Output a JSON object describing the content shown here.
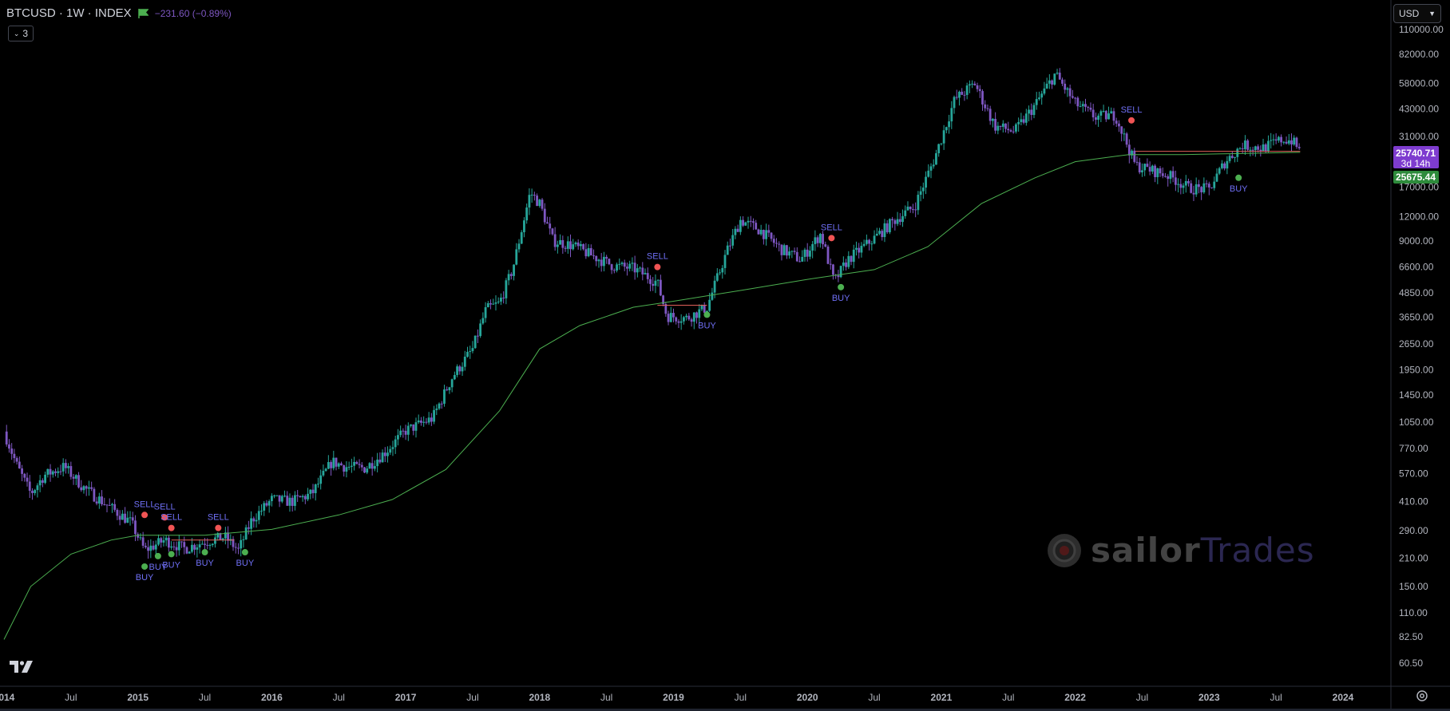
{
  "header": {
    "symbol_line": "BTCUSD · 1W · INDEX",
    "change": "−231.60 (−0.89%)",
    "indicator_count": "3"
  },
  "currency_selector": {
    "value": "USD"
  },
  "watermark": {
    "part1": "sailor",
    "part2": "Trades"
  },
  "colors": {
    "background": "#000000",
    "candle_up": "#26a69a",
    "candle_down": "#7e57c2",
    "ma_line": "#4caf50",
    "resistance_line": "#e0605a",
    "buy_marker": "#4caf50",
    "sell_marker": "#f05454",
    "signal_text": "#6f6ff5",
    "price_label_last": "#7e3ccf",
    "price_label_ma": "#2e8b3c"
  },
  "price_labels": {
    "last_price": "25740.71",
    "countdown": "3d 14h",
    "ma_price": "25675.44"
  },
  "chart_data": {
    "type": "candlestick",
    "title": "BTCUSD · 1W · INDEX",
    "y_scale": "log",
    "y_ticks": [
      "110000.00",
      "82000.00",
      "58000.00",
      "43000.00",
      "31000.00",
      "17000.00",
      "12000.00",
      "9000.00",
      "6600.00",
      "4850.00",
      "3650.00",
      "2650.00",
      "1950.00",
      "1450.00",
      "1050.00",
      "770.00",
      "570.00",
      "410.00",
      "290.00",
      "210.00",
      "150.00",
      "110.00",
      "82.50",
      "60.50"
    ],
    "x_ticks": [
      "2014",
      "Jul",
      "2015",
      "Jul",
      "2016",
      "Jul",
      "2017",
      "Jul",
      "2018",
      "Jul",
      "2019",
      "Jul",
      "2020",
      "Jul",
      "2021",
      "Jul",
      "2022",
      "Jul",
      "2023",
      "Jul",
      "2024"
    ],
    "price_series": [
      {
        "t": 2014.0,
        "v": 940
      },
      {
        "t": 2014.1,
        "v": 620
      },
      {
        "t": 2014.2,
        "v": 450
      },
      {
        "t": 2014.3,
        "v": 560
      },
      {
        "t": 2014.45,
        "v": 620
      },
      {
        "t": 2014.6,
        "v": 480
      },
      {
        "t": 2014.8,
        "v": 380
      },
      {
        "t": 2014.95,
        "v": 320
      },
      {
        "t": 2015.05,
        "v": 230
      },
      {
        "t": 2015.2,
        "v": 260
      },
      {
        "t": 2015.35,
        "v": 235
      },
      {
        "t": 2015.5,
        "v": 255
      },
      {
        "t": 2015.65,
        "v": 270
      },
      {
        "t": 2015.75,
        "v": 230
      },
      {
        "t": 2015.85,
        "v": 330
      },
      {
        "t": 2016.0,
        "v": 420
      },
      {
        "t": 2016.15,
        "v": 410
      },
      {
        "t": 2016.3,
        "v": 450
      },
      {
        "t": 2016.45,
        "v": 660
      },
      {
        "t": 2016.55,
        "v": 620
      },
      {
        "t": 2016.7,
        "v": 610
      },
      {
        "t": 2016.85,
        "v": 740
      },
      {
        "t": 2017.0,
        "v": 950
      },
      {
        "t": 2017.2,
        "v": 1100
      },
      {
        "t": 2017.35,
        "v": 1800
      },
      {
        "t": 2017.5,
        "v": 2500
      },
      {
        "t": 2017.6,
        "v": 4000
      },
      {
        "t": 2017.7,
        "v": 4300
      },
      {
        "t": 2017.8,
        "v": 6500
      },
      {
        "t": 2017.93,
        "v": 16000
      },
      {
        "t": 2018.0,
        "v": 14000
      },
      {
        "t": 2018.1,
        "v": 9000
      },
      {
        "t": 2018.25,
        "v": 8500
      },
      {
        "t": 2018.4,
        "v": 7500
      },
      {
        "t": 2018.55,
        "v": 6700
      },
      {
        "t": 2018.7,
        "v": 6500
      },
      {
        "t": 2018.88,
        "v": 5500
      },
      {
        "t": 2018.95,
        "v": 3700
      },
      {
        "t": 2019.1,
        "v": 3600
      },
      {
        "t": 2019.25,
        "v": 4100
      },
      {
        "t": 2019.4,
        "v": 8000
      },
      {
        "t": 2019.5,
        "v": 11500
      },
      {
        "t": 2019.65,
        "v": 10200
      },
      {
        "t": 2019.8,
        "v": 8200
      },
      {
        "t": 2019.95,
        "v": 7200
      },
      {
        "t": 2020.1,
        "v": 9800
      },
      {
        "t": 2020.2,
        "v": 5500
      },
      {
        "t": 2020.3,
        "v": 7200
      },
      {
        "t": 2020.5,
        "v": 9300
      },
      {
        "t": 2020.65,
        "v": 11500
      },
      {
        "t": 2020.8,
        "v": 13500
      },
      {
        "t": 2020.95,
        "v": 24000
      },
      {
        "t": 2021.1,
        "v": 48000
      },
      {
        "t": 2021.25,
        "v": 58000
      },
      {
        "t": 2021.4,
        "v": 35000
      },
      {
        "t": 2021.55,
        "v": 33000
      },
      {
        "t": 2021.7,
        "v": 45000
      },
      {
        "t": 2021.85,
        "v": 65000
      },
      {
        "t": 2022.0,
        "v": 46000
      },
      {
        "t": 2022.15,
        "v": 39000
      },
      {
        "t": 2022.3,
        "v": 40000
      },
      {
        "t": 2022.45,
        "v": 22000
      },
      {
        "t": 2022.55,
        "v": 21000
      },
      {
        "t": 2022.7,
        "v": 19500
      },
      {
        "t": 2022.85,
        "v": 16800
      },
      {
        "t": 2023.0,
        "v": 16600
      },
      {
        "t": 2023.12,
        "v": 23000
      },
      {
        "t": 2023.25,
        "v": 28000
      },
      {
        "t": 2023.4,
        "v": 27000
      },
      {
        "t": 2023.55,
        "v": 30000
      },
      {
        "t": 2023.62,
        "v": 29500
      },
      {
        "t": 2023.68,
        "v": 26000
      }
    ],
    "ma_series": [
      {
        "t": 2014.0,
        "v": 80
      },
      {
        "t": 2014.2,
        "v": 150
      },
      {
        "t": 2014.5,
        "v": 220
      },
      {
        "t": 2014.8,
        "v": 260
      },
      {
        "t": 2015.0,
        "v": 275
      },
      {
        "t": 2015.5,
        "v": 275
      },
      {
        "t": 2016.0,
        "v": 295
      },
      {
        "t": 2016.5,
        "v": 350
      },
      {
        "t": 2016.9,
        "v": 420
      },
      {
        "t": 2017.3,
        "v": 600
      },
      {
        "t": 2017.7,
        "v": 1200
      },
      {
        "t": 2018.0,
        "v": 2500
      },
      {
        "t": 2018.3,
        "v": 3300
      },
      {
        "t": 2018.7,
        "v": 4100
      },
      {
        "t": 2019.0,
        "v": 4400
      },
      {
        "t": 2019.5,
        "v": 5000
      },
      {
        "t": 2020.0,
        "v": 5700
      },
      {
        "t": 2020.5,
        "v": 6400
      },
      {
        "t": 2020.9,
        "v": 8400
      },
      {
        "t": 2021.3,
        "v": 14000
      },
      {
        "t": 2021.7,
        "v": 19000
      },
      {
        "t": 2022.0,
        "v": 23000
      },
      {
        "t": 2022.4,
        "v": 25000
      },
      {
        "t": 2022.8,
        "v": 25000
      },
      {
        "t": 2023.2,
        "v": 25300
      },
      {
        "t": 2023.68,
        "v": 25675
      }
    ],
    "resistance_segments": [
      {
        "t1": 2015.25,
        "t2": 2015.72,
        "v": 260
      },
      {
        "t1": 2018.88,
        "t2": 2019.25,
        "v": 4200
      },
      {
        "t1": 2022.45,
        "t2": 2023.68,
        "v": 26000
      }
    ],
    "signals": [
      {
        "type": "SELL",
        "t": 2015.05,
        "v": 350
      },
      {
        "type": "SELL",
        "t": 2015.2,
        "v": 340
      },
      {
        "type": "SELL",
        "t": 2015.25,
        "v": 300
      },
      {
        "type": "SELL",
        "t": 2015.6,
        "v": 300
      },
      {
        "type": "BUY",
        "t": 2015.05,
        "v": 190
      },
      {
        "type": "BUY",
        "t": 2015.15,
        "v": 215
      },
      {
        "type": "BUY",
        "t": 2015.25,
        "v": 220
      },
      {
        "type": "BUY",
        "t": 2015.5,
        "v": 225
      },
      {
        "type": "BUY",
        "t": 2015.8,
        "v": 225
      },
      {
        "type": "SELL",
        "t": 2018.88,
        "v": 6600
      },
      {
        "type": "BUY",
        "t": 2019.25,
        "v": 3750
      },
      {
        "type": "SELL",
        "t": 2020.18,
        "v": 9300
      },
      {
        "type": "BUY",
        "t": 2020.25,
        "v": 5200
      },
      {
        "type": "SELL",
        "t": 2022.42,
        "v": 37500
      },
      {
        "type": "BUY",
        "t": 2023.22,
        "v": 19000
      }
    ]
  }
}
